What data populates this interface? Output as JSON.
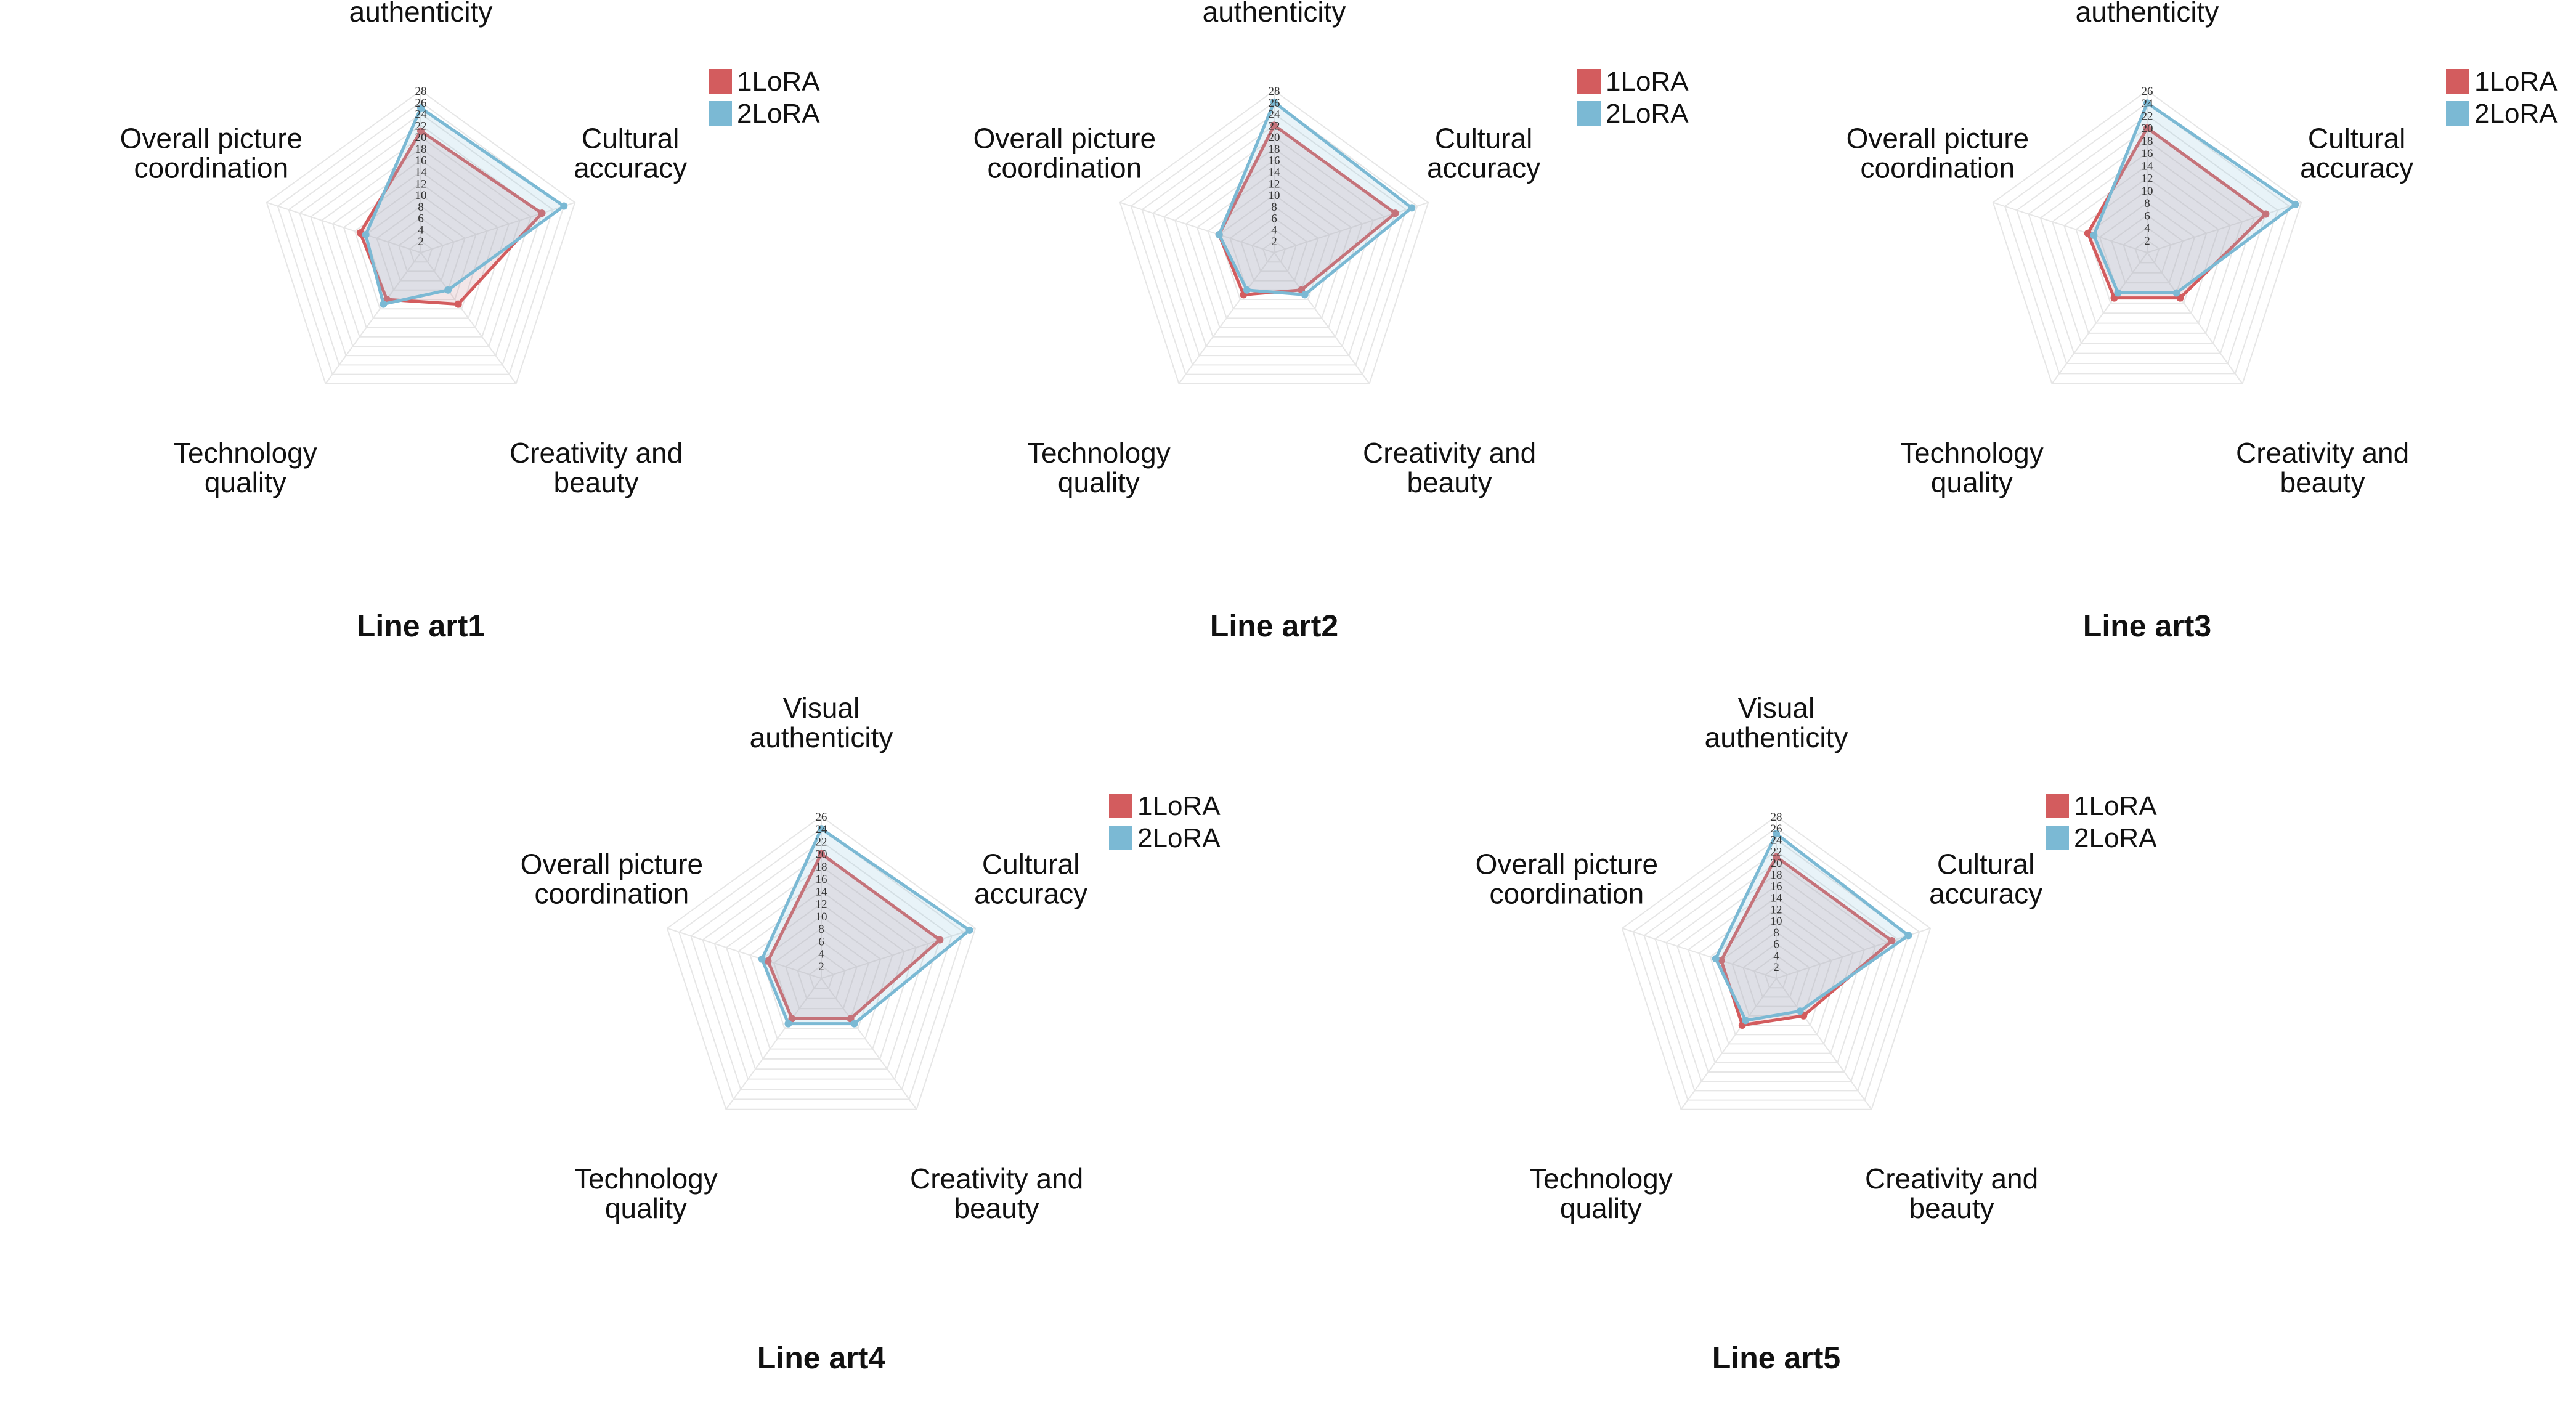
{
  "chart_data": [
    {
      "type": "radar",
      "title": "Line art1",
      "axes": [
        "Visual authenticity",
        "Cultural accuracy",
        "Creativity and beauty",
        "Technology quality",
        "Overall picture coordination"
      ],
      "ticks": [
        2,
        4,
        6,
        8,
        10,
        12,
        14,
        16,
        18,
        20,
        22,
        24,
        26,
        28
      ],
      "rmax": 28,
      "legend": [
        "1LoRA",
        "2LoRA"
      ],
      "series": [
        {
          "name": "1LoRA",
          "color": "#d35c5e",
          "values": [
            21,
            22,
            11,
            10,
            11
          ]
        },
        {
          "name": "2LoRA",
          "color": "#7bb9d4",
          "values": [
            25,
            26,
            8,
            11,
            10
          ]
        }
      ]
    },
    {
      "type": "radar",
      "title": "Line art2",
      "axes": [
        "Visual authenticity",
        "Cultural accuracy",
        "Creativity and beauty",
        "Technology quality",
        "Overall picture coordination"
      ],
      "ticks": [
        2,
        4,
        6,
        8,
        10,
        12,
        14,
        16,
        18,
        20,
        22,
        24,
        26,
        28
      ],
      "rmax": 28,
      "legend": [
        "1LoRA",
        "2LoRA"
      ],
      "series": [
        {
          "name": "1LoRA",
          "color": "#d35c5e",
          "values": [
            22,
            22,
            8,
            9,
            10
          ]
        },
        {
          "name": "2LoRA",
          "color": "#7bb9d4",
          "values": [
            26,
            25,
            9,
            8,
            10
          ]
        }
      ]
    },
    {
      "type": "radar",
      "title": "Line art3",
      "axes": [
        "Visual authenticity",
        "Cultural accuracy",
        "Creativity and beauty",
        "Technology quality",
        "Overall picture coordination"
      ],
      "ticks": [
        2,
        4,
        6,
        8,
        10,
        12,
        14,
        16,
        18,
        20,
        22,
        24,
        26
      ],
      "rmax": 26,
      "legend": [
        "1LoRA",
        "2LoRA"
      ],
      "series": [
        {
          "name": "1LoRA",
          "color": "#d35c5e",
          "values": [
            20,
            20,
            9,
            9,
            10
          ]
        },
        {
          "name": "2LoRA",
          "color": "#7bb9d4",
          "values": [
            24,
            25,
            8,
            8,
            9
          ]
        }
      ]
    },
    {
      "type": "radar",
      "title": "Line art4",
      "axes": [
        "Visual authenticity",
        "Cultural accuracy",
        "Creativity and beauty",
        "Technology quality",
        "Overall picture coordination"
      ],
      "ticks": [
        2,
        4,
        6,
        8,
        10,
        12,
        14,
        16,
        18,
        20,
        22,
        24,
        26
      ],
      "rmax": 26,
      "legend": [
        "1LoRA",
        "2LoRA"
      ],
      "series": [
        {
          "name": "1LoRA",
          "color": "#d35c5e",
          "values": [
            20,
            20,
            8,
            8,
            9
          ]
        },
        {
          "name": "2LoRA",
          "color": "#7bb9d4",
          "values": [
            24,
            25,
            9,
            9,
            10
          ]
        }
      ]
    },
    {
      "type": "radar",
      "title": "Line art5",
      "axes": [
        "Visual authenticity",
        "Cultural accuracy",
        "Creativity and beauty",
        "Technology quality",
        "Overall picture coordination"
      ],
      "ticks": [
        2,
        4,
        6,
        8,
        10,
        12,
        14,
        16,
        18,
        20,
        22,
        24,
        26,
        28
      ],
      "rmax": 28,
      "legend": [
        "1LoRA",
        "2LoRA"
      ],
      "series": [
        {
          "name": "1LoRA",
          "color": "#d35c5e",
          "values": [
            21,
            21,
            8,
            10,
            10
          ]
        },
        {
          "name": "2LoRA",
          "color": "#7bb9d4",
          "values": [
            25,
            24,
            7,
            9,
            11
          ]
        }
      ]
    }
  ]
}
